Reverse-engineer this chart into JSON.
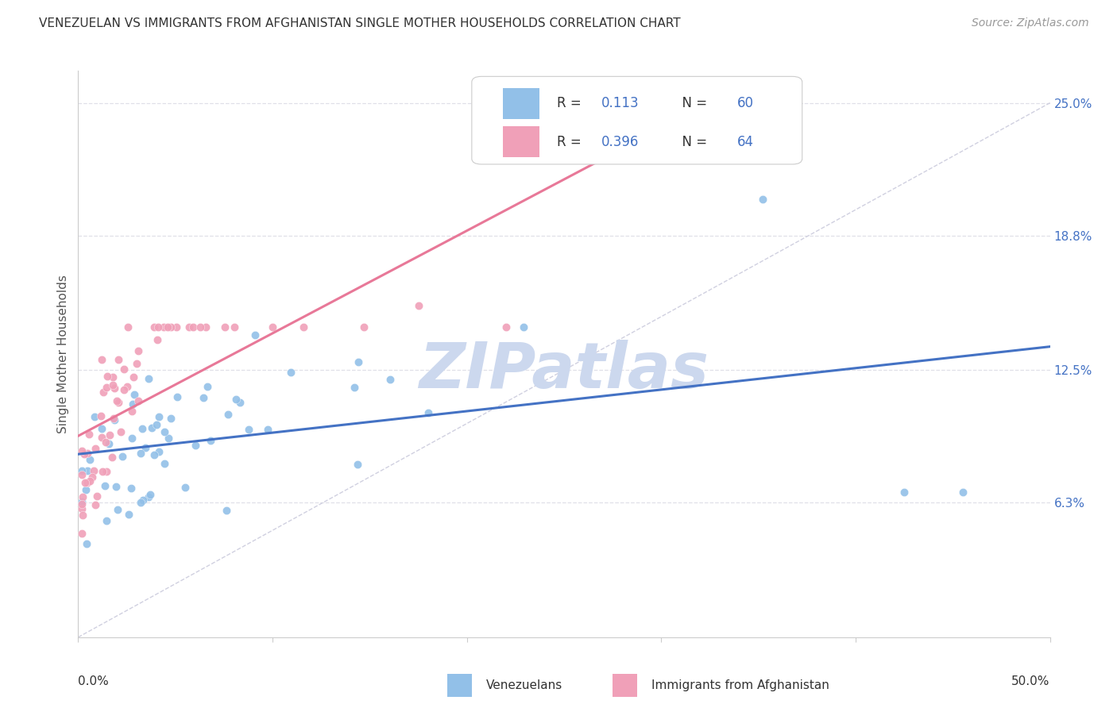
{
  "title": "VENEZUELAN VS IMMIGRANTS FROM AFGHANISTAN SINGLE MOTHER HOUSEHOLDS CORRELATION CHART",
  "source": "Source: ZipAtlas.com",
  "ylabel": "Single Mother Households",
  "ytick_labels": [
    "6.3%",
    "12.5%",
    "18.8%",
    "25.0%"
  ],
  "ytick_values": [
    0.063,
    0.125,
    0.188,
    0.25
  ],
  "xlim": [
    0.0,
    0.5
  ],
  "ylim": [
    0.0,
    0.265
  ],
  "watermark": "ZIPatlas",
  "venezuelan_color": "#92c0e8",
  "afghan_color": "#f0a0b8",
  "venezuelan_line_color": "#4472c4",
  "afghan_line_color": "#e87898",
  "ref_line_color": "#d0d0e0",
  "grid_color": "#e0e0e8",
  "background_color": "#ffffff",
  "title_color": "#333333",
  "source_color": "#999999",
  "axis_label_color": "#555555",
  "tick_label_color": "#4472c4",
  "legend_text_color": "#333333",
  "legend_value_color": "#4472c4"
}
